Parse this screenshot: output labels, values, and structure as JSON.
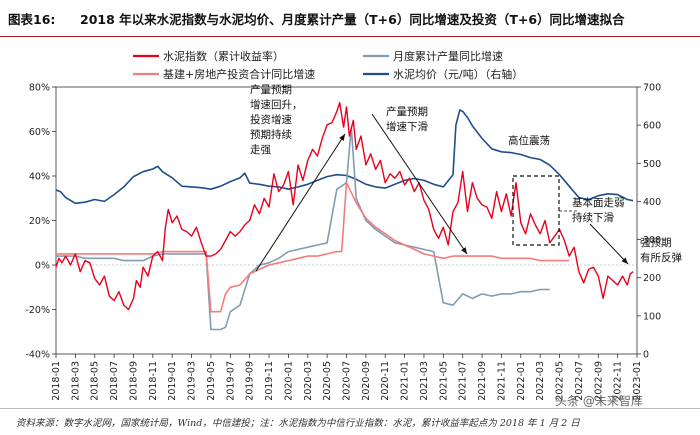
{
  "header": {
    "figure_number": "图表16:",
    "title": "2018 年以来水泥指数与水泥均价、月度累计产量（T+6）同比增速及投资（T+6）同比增速拟合"
  },
  "footer": {
    "source": "资料来源：数字水泥网，国家统计局，Wind，中信建投；注：水泥指数为中信行业指数：水泥，累计收益率起点为 2018 年 1 月 2 日"
  },
  "watermark": "头条 @未来智库",
  "colors": {
    "cement_index": "#e8001c",
    "output_growth": "#7f9eb2",
    "investment_growth": "#f47c7c",
    "price": "#1f4e8c"
  },
  "chart_data": {
    "type": "line",
    "left_axis": {
      "ylim": [
        -40,
        80
      ],
      "ticks": [
        "-40%",
        "-20%",
        "0%",
        "20%",
        "40%",
        "60%",
        "80%"
      ]
    },
    "right_axis": {
      "ylim": [
        0,
        700
      ],
      "ticks": [
        "0",
        "100",
        "200",
        "300",
        "400",
        "500",
        "600",
        "700"
      ]
    },
    "x_ticks": [
      "2018-01",
      "2018-03",
      "2018-05",
      "2018-07",
      "2018-09",
      "2018-11",
      "2019-01",
      "2019-03",
      "2019-05",
      "2019-07",
      "2019-09",
      "2019-11",
      "2020-01",
      "2020-03",
      "2020-05",
      "2020-07",
      "2020-09",
      "2020-11",
      "2021-01",
      "2021-03",
      "2021-05",
      "2021-07",
      "2021-09",
      "2021-11",
      "2022-01",
      "2022-03",
      "2022-05",
      "2022-07",
      "2022-09",
      "2022-11",
      "2023-01"
    ],
    "series": [
      {
        "name": "水泥指数（累计收益率）",
        "axis": "left",
        "color_key": "cement_index",
        "points": [
          [
            0,
            -1
          ],
          [
            0.3,
            3
          ],
          [
            0.6,
            1
          ],
          [
            1,
            4
          ],
          [
            1.5,
            0
          ],
          [
            2,
            5
          ],
          [
            2.5,
            -3
          ],
          [
            3,
            2
          ],
          [
            3.5,
            1
          ],
          [
            4,
            -6
          ],
          [
            4.5,
            -9
          ],
          [
            5,
            -5
          ],
          [
            5.5,
            -14
          ],
          [
            6,
            -16
          ],
          [
            6.5,
            -12
          ],
          [
            7,
            -18
          ],
          [
            7.5,
            -20
          ],
          [
            8,
            -15
          ],
          [
            8.3,
            -7
          ],
          [
            8.7,
            -10
          ],
          [
            9,
            -1
          ],
          [
            9.5,
            -5
          ],
          [
            10,
            4
          ],
          [
            10.5,
            6
          ],
          [
            11,
            2
          ],
          [
            11.3,
            17
          ],
          [
            11.6,
            25
          ],
          [
            12,
            19
          ],
          [
            12.5,
            22
          ],
          [
            13,
            16
          ],
          [
            13.5,
            15
          ],
          [
            14,
            13
          ],
          [
            14.5,
            17
          ],
          [
            15,
            10
          ],
          [
            15.5,
            4
          ],
          [
            16,
            4
          ],
          [
            16.5,
            5
          ],
          [
            17,
            7
          ],
          [
            17.5,
            11
          ],
          [
            18,
            15
          ],
          [
            18.5,
            13
          ],
          [
            19,
            15
          ],
          [
            19.5,
            18
          ],
          [
            20,
            20
          ],
          [
            20.5,
            27
          ],
          [
            21,
            23
          ],
          [
            21.5,
            30
          ],
          [
            22,
            26
          ],
          [
            22.5,
            41
          ],
          [
            23,
            33
          ],
          [
            23.5,
            36
          ],
          [
            24,
            42
          ],
          [
            24.5,
            27
          ],
          [
            25,
            45
          ],
          [
            25.5,
            38
          ],
          [
            26,
            47
          ],
          [
            26.5,
            52
          ],
          [
            27,
            49
          ],
          [
            27.5,
            57
          ],
          [
            28,
            63
          ],
          [
            28.5,
            64
          ],
          [
            29,
            69
          ],
          [
            29.3,
            73
          ],
          [
            29.7,
            62
          ],
          [
            30,
            71
          ],
          [
            30.3,
            58
          ],
          [
            30.7,
            65
          ],
          [
            31,
            52
          ],
          [
            31.5,
            58
          ],
          [
            32,
            45
          ],
          [
            32.5,
            50
          ],
          [
            33,
            43
          ],
          [
            33.5,
            47
          ],
          [
            34,
            37
          ],
          [
            34.5,
            41
          ],
          [
            35,
            39
          ],
          [
            35.5,
            42
          ],
          [
            36,
            36
          ],
          [
            36.5,
            39
          ],
          [
            37,
            33
          ],
          [
            37.5,
            37
          ],
          [
            38,
            29
          ],
          [
            38.5,
            25
          ],
          [
            39,
            16
          ],
          [
            39.5,
            12
          ],
          [
            40,
            17
          ],
          [
            40.5,
            9
          ],
          [
            41,
            24
          ],
          [
            41.5,
            28
          ],
          [
            42,
            42
          ],
          [
            42.5,
            24
          ],
          [
            43,
            37
          ],
          [
            43.5,
            30
          ],
          [
            44,
            27
          ],
          [
            44.5,
            26
          ],
          [
            45,
            21
          ],
          [
            45.5,
            33
          ],
          [
            46,
            24
          ],
          [
            46.5,
            32
          ],
          [
            47,
            22
          ],
          [
            47.5,
            37
          ],
          [
            48,
            19
          ],
          [
            48.5,
            14
          ],
          [
            49,
            23
          ],
          [
            49.5,
            18
          ],
          [
            50,
            14
          ],
          [
            50.5,
            20
          ],
          [
            51,
            10
          ],
          [
            51.5,
            13
          ],
          [
            52,
            16
          ],
          [
            52.5,
            11
          ],
          [
            53,
            4
          ],
          [
            53.5,
            8
          ],
          [
            54,
            -3
          ],
          [
            54.5,
            -8
          ],
          [
            55,
            -2
          ],
          [
            55.5,
            -1
          ],
          [
            56,
            -5
          ],
          [
            56.5,
            -15
          ],
          [
            57,
            -5
          ],
          [
            57.5,
            -7
          ],
          [
            58,
            -9
          ],
          [
            58.5,
            -5
          ],
          [
            59,
            -9
          ],
          [
            59.3,
            -4
          ],
          [
            59.6,
            -3
          ]
        ]
      },
      {
        "name": "月度累计产量同比增速",
        "axis": "left",
        "color_key": "output_growth",
        "points": [
          [
            0,
            4
          ],
          [
            1,
            4
          ],
          [
            2,
            4
          ],
          [
            3,
            3
          ],
          [
            4,
            3
          ],
          [
            5,
            3
          ],
          [
            6,
            3
          ],
          [
            7,
            2
          ],
          [
            8,
            2
          ],
          [
            9,
            2
          ],
          [
            10,
            4
          ],
          [
            11,
            5
          ],
          [
            12,
            5
          ],
          [
            13,
            5
          ],
          [
            14,
            5
          ],
          [
            15,
            5
          ],
          [
            15.5,
            5
          ],
          [
            16,
            -29
          ],
          [
            17,
            -29
          ],
          [
            17.5,
            -28
          ],
          [
            18,
            -21
          ],
          [
            19,
            -18
          ],
          [
            20,
            -4
          ],
          [
            21,
            0
          ],
          [
            22,
            1
          ],
          [
            23,
            3
          ],
          [
            24,
            6
          ],
          [
            25,
            7
          ],
          [
            26,
            8
          ],
          [
            27,
            9
          ],
          [
            28,
            10
          ],
          [
            29,
            34
          ],
          [
            30,
            37
          ],
          [
            30.5,
            62
          ],
          [
            31,
            30
          ],
          [
            32,
            20
          ],
          [
            33,
            16
          ],
          [
            34,
            13
          ],
          [
            35,
            10
          ],
          [
            36,
            9
          ],
          [
            37,
            8
          ],
          [
            38,
            7
          ],
          [
            39,
            6
          ],
          [
            40,
            -17
          ],
          [
            41,
            -18
          ],
          [
            42,
            -13
          ],
          [
            43,
            -15
          ],
          [
            44,
            -13
          ],
          [
            45,
            -14
          ],
          [
            46,
            -13
          ],
          [
            47,
            -13
          ],
          [
            48,
            -12
          ],
          [
            49,
            -12
          ],
          [
            50,
            -11
          ],
          [
            51,
            -11
          ]
        ]
      },
      {
        "name": "基建+房地产投资合计同比增速",
        "axis": "left",
        "color_key": "investment_growth",
        "points": [
          [
            0,
            5
          ],
          [
            1,
            5
          ],
          [
            2,
            5
          ],
          [
            3,
            5
          ],
          [
            4,
            5
          ],
          [
            5,
            5
          ],
          [
            6,
            5
          ],
          [
            7,
            5
          ],
          [
            8,
            5
          ],
          [
            9,
            5
          ],
          [
            10,
            5
          ],
          [
            11,
            6
          ],
          [
            12,
            6
          ],
          [
            13,
            6
          ],
          [
            14,
            6
          ],
          [
            15,
            6
          ],
          [
            15.5,
            6
          ],
          [
            16,
            -21
          ],
          [
            17,
            -21
          ],
          [
            17.5,
            -13
          ],
          [
            18,
            -10
          ],
          [
            19,
            -9
          ],
          [
            20,
            -4
          ],
          [
            21,
            -2
          ],
          [
            22,
            0
          ],
          [
            23,
            1
          ],
          [
            24,
            2
          ],
          [
            25,
            3
          ],
          [
            26,
            4
          ],
          [
            27,
            4
          ],
          [
            28,
            5
          ],
          [
            29,
            6
          ],
          [
            29.5,
            6
          ],
          [
            30,
            37
          ],
          [
            31,
            28
          ],
          [
            32,
            21
          ],
          [
            33,
            17
          ],
          [
            34,
            14
          ],
          [
            35,
            11
          ],
          [
            36,
            9
          ],
          [
            37,
            7
          ],
          [
            38,
            5
          ],
          [
            39,
            4
          ],
          [
            40,
            3
          ],
          [
            41,
            4
          ],
          [
            42,
            4
          ],
          [
            43,
            4
          ],
          [
            44,
            4
          ],
          [
            45,
            4
          ],
          [
            46,
            3
          ],
          [
            47,
            3
          ],
          [
            48,
            3
          ],
          [
            49,
            3
          ],
          [
            50,
            2
          ],
          [
            51,
            2
          ],
          [
            52,
            2
          ],
          [
            53,
            2
          ]
        ]
      },
      {
        "name": "水泥均价（元/吨）（右轴）",
        "axis": "right",
        "color_key": "price",
        "points": [
          [
            0,
            430
          ],
          [
            0.5,
            425
          ],
          [
            1,
            410
          ],
          [
            2,
            395
          ],
          [
            3,
            398
          ],
          [
            4,
            405
          ],
          [
            5,
            400
          ],
          [
            6,
            418
          ],
          [
            7,
            438
          ],
          [
            8,
            465
          ],
          [
            9,
            478
          ],
          [
            10,
            485
          ],
          [
            10.5,
            492
          ],
          [
            11,
            478
          ],
          [
            12,
            462
          ],
          [
            13,
            440
          ],
          [
            14,
            438
          ],
          [
            15,
            436
          ],
          [
            16,
            432
          ],
          [
            17,
            440
          ],
          [
            18,
            452
          ],
          [
            19,
            462
          ],
          [
            19.5,
            474
          ],
          [
            20,
            448
          ],
          [
            21,
            445
          ],
          [
            22,
            440
          ],
          [
            23,
            438
          ],
          [
            24,
            432
          ],
          [
            25,
            438
          ],
          [
            26,
            445
          ],
          [
            27,
            455
          ],
          [
            28,
            465
          ],
          [
            29,
            470
          ],
          [
            30,
            468
          ],
          [
            31,
            458
          ],
          [
            32,
            445
          ],
          [
            33,
            438
          ],
          [
            34,
            435
          ],
          [
            35,
            445
          ],
          [
            36,
            455
          ],
          [
            37,
            460
          ],
          [
            38,
            455
          ],
          [
            39,
            445
          ],
          [
            40,
            438
          ],
          [
            41,
            470
          ],
          [
            41.3,
            600
          ],
          [
            41.7,
            640
          ],
          [
            42,
            636
          ],
          [
            42.5,
            620
          ],
          [
            43,
            598
          ],
          [
            44,
            565
          ],
          [
            45,
            538
          ],
          [
            46,
            530
          ],
          [
            47,
            528
          ],
          [
            48,
            523
          ],
          [
            49,
            515
          ],
          [
            50,
            510
          ],
          [
            51,
            495
          ],
          [
            52,
            470
          ],
          [
            53,
            440
          ],
          [
            54,
            410
          ],
          [
            55,
            405
          ],
          [
            56,
            415
          ],
          [
            57,
            420
          ],
          [
            58,
            418
          ],
          [
            59,
            405
          ],
          [
            59.6,
            402
          ]
        ]
      }
    ],
    "annotations": [
      {
        "lines": [
          "产量预期",
          "增速回升，",
          "投资增速",
          "预期持续",
          "走强"
        ]
      },
      {
        "lines": [
          "产量预期",
          "增速下滑"
        ]
      },
      {
        "lines": [
          "高位震荡"
        ]
      },
      {
        "lines": [
          "基本面走弱",
          "持续下滑"
        ]
      },
      {
        "lines": [
          "强预期",
          "有所反弹"
        ]
      }
    ]
  }
}
